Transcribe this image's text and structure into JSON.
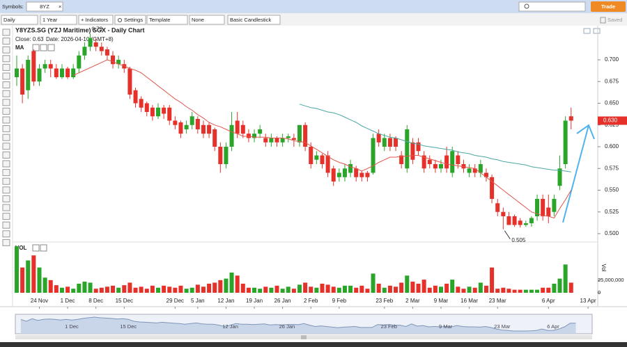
{
  "ui": {
    "symbols_label": "Symbols:",
    "symbol": "8YZ",
    "trade_button": "Trade",
    "interval": "Daily",
    "range": "1 Year",
    "indicators": "+ Indicators",
    "settings": "Settings",
    "template": "Template",
    "drawing": "None",
    "chart_style": "Basic Candlestick",
    "saved": "Saved"
  },
  "chart_data": {
    "type": "candlestick",
    "title": "Y8YZS.SG (YZJ Maritime) SGX - Daily Chart",
    "info": [
      "Close: 0.63",
      "Date: 2026-04-10 (GMT+8)"
    ],
    "categories": [
      null,
      null,
      null,
      null,
      "24 Nov",
      null,
      null,
      null,
      null,
      "1 Dec",
      null,
      null,
      null,
      null,
      "8 Dec",
      null,
      null,
      null,
      null,
      "15 Dec",
      null,
      null,
      null,
      null,
      null,
      null,
      null,
      null,
      "29 Dec",
      null,
      null,
      null,
      "5 Jan",
      null,
      null,
      null,
      null,
      "12 Jan",
      null,
      null,
      null,
      null,
      "19 Jan",
      null,
      null,
      null,
      null,
      "26 Jan",
      null,
      null,
      null,
      null,
      "2 Feb",
      null,
      null,
      null,
      null,
      "9 Feb",
      null,
      null,
      null,
      null,
      null,
      null,
      null,
      "23 Feb",
      null,
      null,
      null,
      null,
      "2 Mar",
      null,
      null,
      null,
      null,
      "9 Mar",
      null,
      null,
      null,
      null,
      "16 Mar",
      null,
      null,
      null,
      null,
      "23 Mar",
      null,
      null,
      null,
      null,
      null,
      null,
      null,
      null,
      "6 Apr",
      null,
      null,
      null,
      null,
      null,
      null,
      "13 Apr"
    ],
    "open": [
      0.68,
      0.69,
      0.665,
      0.71,
      0.675,
      0.69,
      0.695,
      0.69,
      0.68,
      0.69,
      0.68,
      0.69,
      0.705,
      0.715,
      0.72,
      0.715,
      0.712,
      0.705,
      0.695,
      0.695,
      0.69,
      0.665,
      0.655,
      0.65,
      0.645,
      0.635,
      0.645,
      0.645,
      0.63,
      0.628,
      0.62,
      0.625,
      0.632,
      0.625,
      0.625,
      0.62,
      0.6,
      0.58,
      0.6,
      0.63,
      0.625,
      0.615,
      0.61,
      0.615,
      0.61,
      0.605,
      0.61,
      0.605,
      0.61,
      0.61,
      0.605,
      0.625,
      0.6,
      0.585,
      0.59,
      0.59,
      0.575,
      0.565,
      0.565,
      0.57,
      0.575,
      0.57,
      0.57,
      0.57,
      0.615,
      0.6,
      0.61,
      0.61,
      0.59,
      0.575,
      0.605,
      0.605,
      0.59,
      0.585,
      0.58,
      0.575,
      0.59,
      0.57,
      0.59,
      0.58,
      0.57,
      0.575,
      0.57,
      0.57,
      0.565,
      0.535,
      0.525,
      0.52,
      0.52,
      0.515,
      0.51,
      0.512,
      0.52,
      0.54,
      0.53,
      0.525,
      0.555,
      0.58,
      0.635,
      null,
      null,
      null
    ],
    "high": [
      0.705,
      0.695,
      0.705,
      0.712,
      0.695,
      0.7,
      0.7,
      0.695,
      0.695,
      0.692,
      0.695,
      0.71,
      0.72,
      0.73,
      0.725,
      0.72,
      0.715,
      0.71,
      0.705,
      0.7,
      0.692,
      0.668,
      0.658,
      0.652,
      0.648,
      0.65,
      0.648,
      0.648,
      0.635,
      0.63,
      0.63,
      0.64,
      0.635,
      0.63,
      0.628,
      0.622,
      0.605,
      0.605,
      0.64,
      0.64,
      0.63,
      0.62,
      0.62,
      0.625,
      0.615,
      0.615,
      0.612,
      0.615,
      0.615,
      0.615,
      0.625,
      0.628,
      0.605,
      0.595,
      0.592,
      0.595,
      0.578,
      0.575,
      0.58,
      0.585,
      0.578,
      0.572,
      0.572,
      0.615,
      0.62,
      0.615,
      0.615,
      0.612,
      0.595,
      0.625,
      0.61,
      0.61,
      0.595,
      0.59,
      0.585,
      0.585,
      0.6,
      0.6,
      0.595,
      0.585,
      0.58,
      0.58,
      0.585,
      0.575,
      0.568,
      0.54,
      0.53,
      0.525,
      0.522,
      0.518,
      0.515,
      0.52,
      0.545,
      0.545,
      0.545,
      0.545,
      0.59,
      0.635,
      0.645,
      null,
      null,
      null
    ],
    "low": [
      0.67,
      0.65,
      0.655,
      0.67,
      0.67,
      0.685,
      0.68,
      0.678,
      0.678,
      0.678,
      0.678,
      0.685,
      0.7,
      0.71,
      0.71,
      0.705,
      0.7,
      0.69,
      0.69,
      0.685,
      0.655,
      0.645,
      0.64,
      0.635,
      0.63,
      0.632,
      0.632,
      0.625,
      0.62,
      0.61,
      0.615,
      0.62,
      0.615,
      0.61,
      0.61,
      0.595,
      0.57,
      0.575,
      0.595,
      0.61,
      0.61,
      0.605,
      0.605,
      0.61,
      0.6,
      0.6,
      0.6,
      0.6,
      0.605,
      0.6,
      0.6,
      0.595,
      0.575,
      0.58,
      0.575,
      0.565,
      0.555,
      0.56,
      0.56,
      0.565,
      0.56,
      0.56,
      0.56,
      0.568,
      0.6,
      0.595,
      0.595,
      0.595,
      0.575,
      0.57,
      0.58,
      0.59,
      0.57,
      0.575,
      0.57,
      0.57,
      0.57,
      0.565,
      0.575,
      0.57,
      0.565,
      0.565,
      0.565,
      0.56,
      0.535,
      0.52,
      0.505,
      0.51,
      0.508,
      0.507,
      0.508,
      0.508,
      0.515,
      0.515,
      0.512,
      0.52,
      0.55,
      0.575,
      0.62,
      null,
      null,
      null
    ],
    "close": [
      0.69,
      0.66,
      0.7,
      0.675,
      0.69,
      0.695,
      0.69,
      0.68,
      0.69,
      0.68,
      0.69,
      0.705,
      0.715,
      0.725,
      0.715,
      0.71,
      0.705,
      0.695,
      0.7,
      0.69,
      0.66,
      0.65,
      0.645,
      0.64,
      0.635,
      0.645,
      0.638,
      0.63,
      0.625,
      0.615,
      0.625,
      0.635,
      0.62,
      0.615,
      0.615,
      0.6,
      0.58,
      0.6,
      0.625,
      0.615,
      0.615,
      0.61,
      0.615,
      0.62,
      0.605,
      0.61,
      0.605,
      0.61,
      0.612,
      0.608,
      0.625,
      0.6,
      0.58,
      0.59,
      0.58,
      0.57,
      0.56,
      0.57,
      0.575,
      0.58,
      0.565,
      0.565,
      0.565,
      0.61,
      0.605,
      0.61,
      0.6,
      0.6,
      0.58,
      0.62,
      0.585,
      0.595,
      0.575,
      0.58,
      0.575,
      0.58,
      0.575,
      0.595,
      0.58,
      0.575,
      0.575,
      0.57,
      0.58,
      0.565,
      0.54,
      0.525,
      0.52,
      0.51,
      0.51,
      0.51,
      0.512,
      0.518,
      0.54,
      0.52,
      0.52,
      0.54,
      0.575,
      0.63,
      0.63,
      null,
      null,
      null
    ],
    "colors": {
      "up": "#2aa52a",
      "down": "#e5312a"
    },
    "last_close_label": "0.630",
    "annotations": {
      "high": "0.73",
      "low": "0.505"
    },
    "indicator_label": "MA",
    "ma_lines": [
      {
        "color": "#e0574c",
        "values": [
          null,
          null,
          null,
          null,
          null,
          null,
          null,
          null,
          null,
          null,
          0.682,
          0.685,
          0.688,
          0.691,
          0.694,
          0.697,
          0.7,
          0.698,
          0.695,
          0.693,
          0.69,
          0.688,
          0.685,
          0.68,
          0.675,
          0.67,
          0.665,
          0.66,
          0.655,
          0.651,
          0.646,
          0.642,
          0.637,
          0.633,
          0.628,
          0.625,
          0.623,
          0.62,
          0.617,
          0.615,
          0.612,
          0.612,
          0.611,
          0.611,
          0.611,
          0.61,
          0.61,
          0.61,
          0.609,
          0.607,
          0.606,
          0.605,
          0.601,
          0.597,
          0.593,
          0.589,
          0.585,
          0.582,
          0.58,
          0.577,
          0.575,
          0.572,
          0.575,
          0.578,
          0.582,
          0.585,
          0.588,
          0.588,
          0.589,
          0.589,
          0.59,
          0.59,
          0.588,
          0.586,
          0.584,
          0.582,
          0.58,
          0.579,
          0.578,
          0.577,
          0.576,
          0.575,
          0.57,
          0.565,
          0.56,
          0.555,
          0.55,
          0.545,
          0.54,
          0.535,
          0.53,
          0.525,
          0.523,
          0.521,
          0.52,
          0.518,
          0.529,
          0.539,
          0.55,
          null,
          null,
          null
        ]
      },
      {
        "color": "#49a6a2",
        "values": [
          null,
          null,
          null,
          null,
          null,
          null,
          null,
          null,
          null,
          null,
          null,
          null,
          null,
          null,
          null,
          null,
          null,
          null,
          null,
          null,
          null,
          null,
          null,
          null,
          null,
          null,
          null,
          null,
          null,
          null,
          null,
          null,
          null,
          null,
          null,
          null,
          null,
          null,
          null,
          null,
          null,
          null,
          null,
          null,
          null,
          null,
          null,
          null,
          null,
          null,
          0.649,
          0.647,
          0.645,
          0.644,
          0.642,
          0.64,
          0.639,
          0.637,
          0.634,
          0.631,
          0.628,
          0.624,
          0.621,
          0.618,
          0.615,
          0.613,
          0.611,
          0.61,
          0.608,
          0.606,
          0.604,
          0.603,
          0.601,
          0.6,
          0.599,
          0.598,
          0.597,
          0.596,
          0.594,
          0.593,
          0.592,
          0.59,
          0.589,
          0.588,
          0.586,
          0.585,
          0.583,
          0.582,
          0.581,
          0.58,
          0.579,
          0.577,
          0.576,
          0.575,
          0.574,
          0.573,
          0.573,
          0.572,
          0.571,
          null,
          null,
          null
        ]
      }
    ],
    "ylim": [
      0.4928,
      0.7368
    ],
    "yticks": [
      {
        "value": 0.5,
        "label": "0.500"
      },
      {
        "value": 0.525,
        "label": "0.525"
      },
      {
        "value": 0.55,
        "label": "0.550"
      },
      {
        "value": 0.575,
        "label": "0.575"
      },
      {
        "value": 0.6,
        "label": "0.600"
      },
      {
        "value": 0.625,
        "label": "0.625"
      },
      {
        "value": 0.65,
        "label": "0.650"
      },
      {
        "value": 0.675,
        "label": "0.675"
      },
      {
        "value": 0.7,
        "label": "0.700"
      }
    ],
    "grid": false,
    "volume": {
      "label": "VOL",
      "axis_label": "Vol",
      "ylim": [
        0,
        95000000
      ],
      "yticks": [
        0,
        {
          "value": 25000000,
          "label": "25,000,000"
        }
      ],
      "values": [
        92000000,
        50000000,
        64000000,
        74000000,
        50000000,
        30000000,
        25000000,
        15000000,
        10000000,
        12000000,
        8000000,
        18000000,
        22000000,
        20000000,
        8000000,
        10000000,
        12000000,
        14000000,
        10000000,
        15000000,
        20000000,
        10000000,
        12000000,
        8000000,
        14000000,
        10000000,
        14000000,
        12000000,
        10000000,
        14000000,
        8000000,
        10000000,
        16000000,
        12000000,
        18000000,
        20000000,
        25000000,
        28000000,
        40000000,
        34000000,
        18000000,
        10000000,
        10000000,
        8000000,
        12000000,
        10000000,
        14000000,
        8000000,
        12000000,
        8000000,
        16000000,
        20000000,
        12000000,
        10000000,
        18000000,
        16000000,
        12000000,
        10000000,
        14000000,
        14000000,
        10000000,
        14000000,
        8000000,
        38000000,
        18000000,
        10000000,
        14000000,
        12000000,
        20000000,
        34000000,
        22000000,
        18000000,
        26000000,
        10000000,
        14000000,
        12000000,
        18000000,
        26000000,
        12000000,
        8000000,
        12000000,
        10000000,
        20000000,
        14000000,
        50000000,
        8000000,
        10000000,
        8000000,
        6000000,
        6000000,
        6000000,
        6000000,
        6000000,
        10000000,
        10000000,
        18000000,
        28000000,
        56000000,
        20000000,
        null,
        null,
        null
      ]
    },
    "navigator": {
      "labels": [
        "1 Dec",
        "15 Dec",
        "12 Jan",
        "26 Jan",
        "23 Feb",
        "9 Mar",
        "23 Mar",
        "6 Apr"
      ]
    }
  }
}
